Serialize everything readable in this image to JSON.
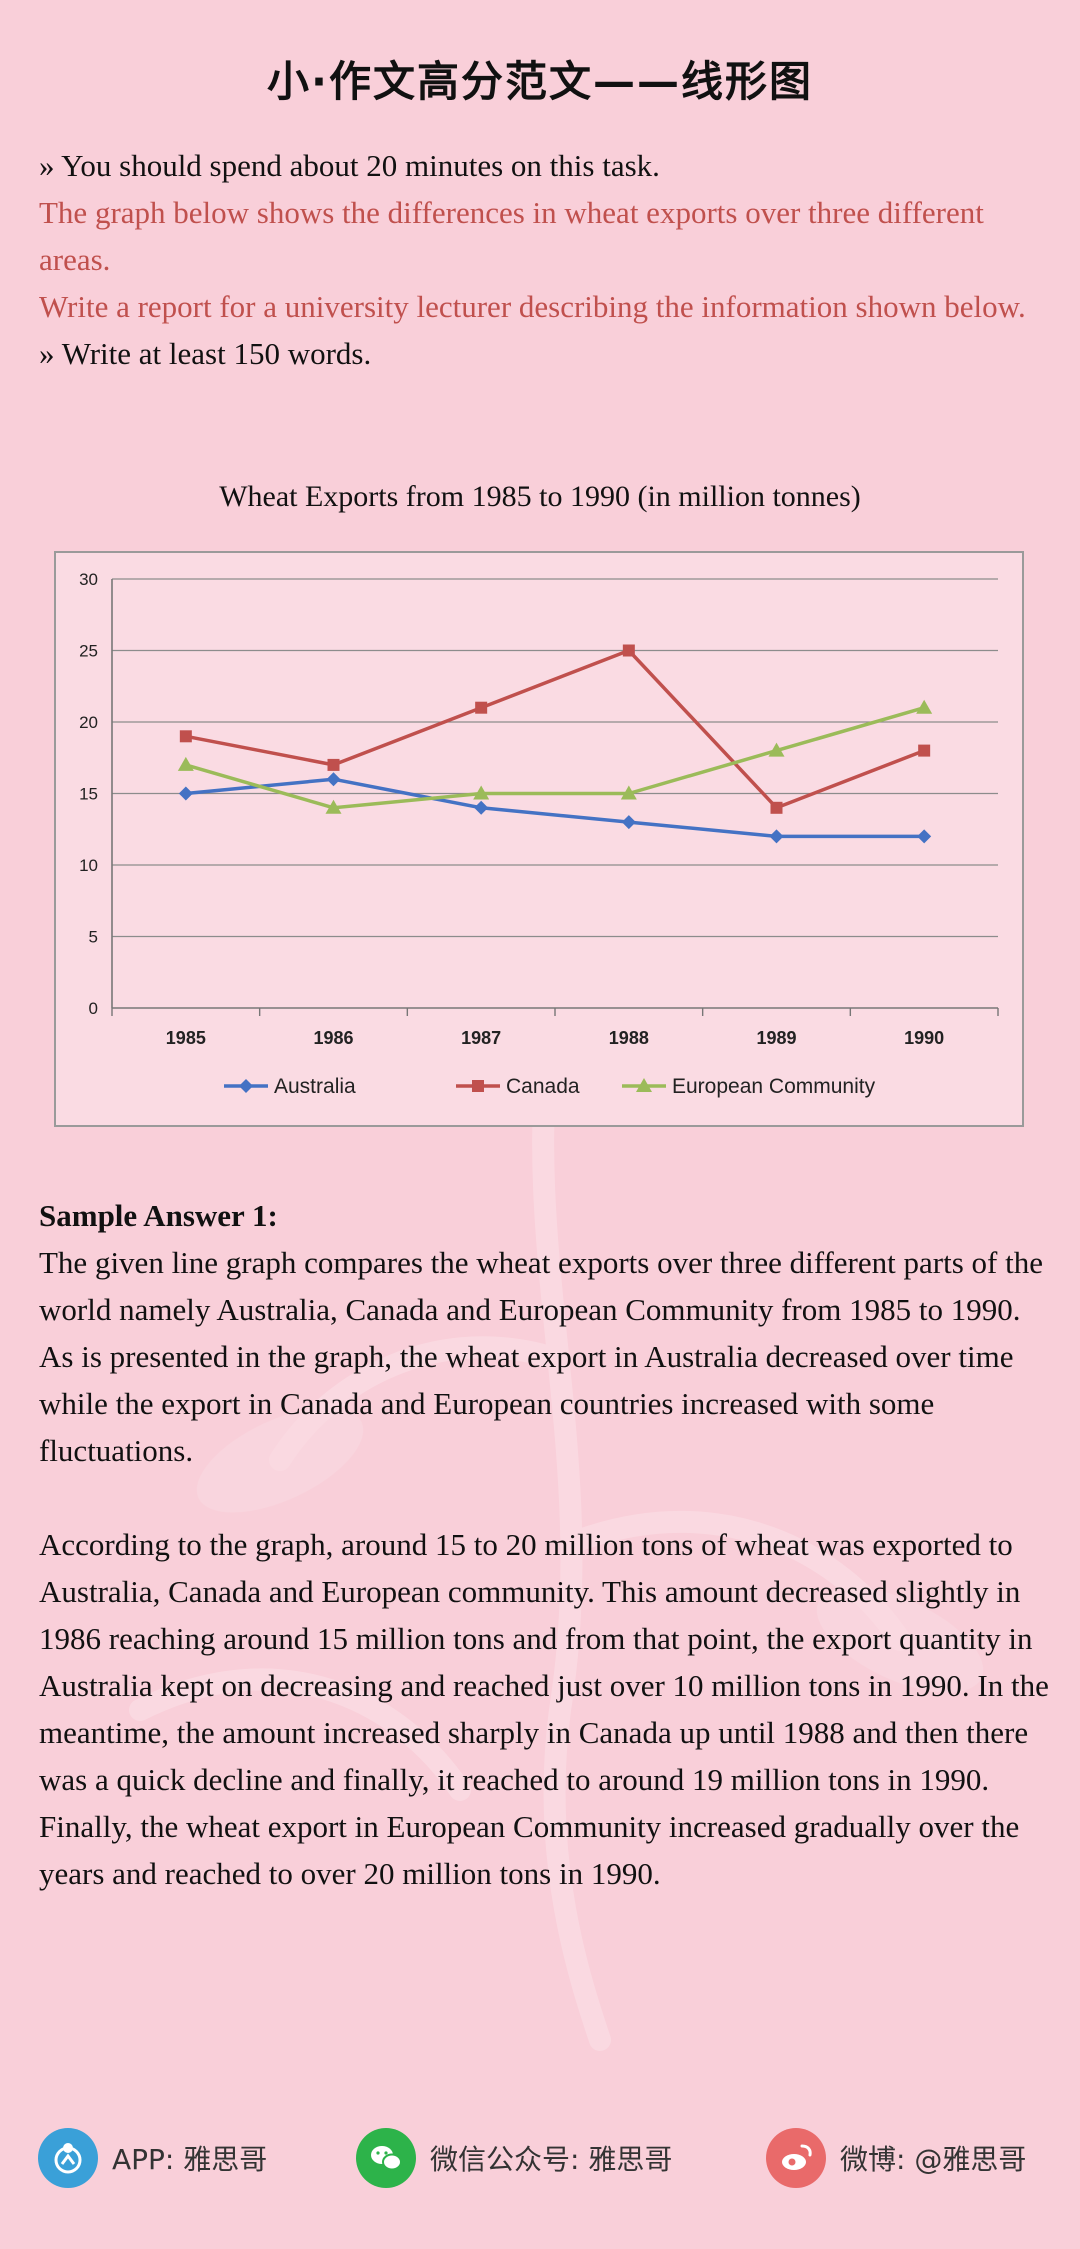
{
  "page_title": "小·作文高分范文——线形图",
  "prompt": {
    "line1": "» You should spend about 20 minutes on this task.",
    "line2": "The graph below shows the differences in wheat exports over three different areas.",
    "line3": "Write a report for a university lecturer describing the information shown below.",
    "line4": "» Write at least 150 words."
  },
  "chart_data": {
    "type": "line",
    "title": "Wheat Exports from 1985 to 1990 (in million tonnes)",
    "categories": [
      "1985",
      "1986",
      "1987",
      "1988",
      "1989",
      "1990"
    ],
    "ylim": [
      0,
      30
    ],
    "yticks": [
      "0",
      "5",
      "10",
      "15",
      "20",
      "25",
      "30"
    ],
    "grid": true,
    "legend_position": "bottom",
    "series": [
      {
        "name": "Australia",
        "color": "#4472c4",
        "marker": "diamond",
        "values": [
          15,
          16,
          14,
          13,
          12,
          12
        ]
      },
      {
        "name": "Canada",
        "color": "#c0504d",
        "marker": "square",
        "values": [
          19,
          17,
          21,
          25,
          14,
          18
        ]
      },
      {
        "name": "European Community",
        "color": "#9bbb59",
        "marker": "triangle",
        "values": [
          17,
          14,
          15,
          15,
          18,
          21
        ]
      }
    ]
  },
  "answer": {
    "heading": "Sample Answer 1:",
    "para1": "The given line graph compares the wheat exports over three different parts of the world namely Australia, Canada and European Community from 1985 to 1990. As is presented in the graph, the wheat export in Australia decreased over time while the export in Canada and European countries increased with some fluctuations.",
    "para2": "According to the graph, around 15 to 20 million tons of wheat was exported to Australia, Canada and European community. This amount decreased slightly in 1986 reaching around 15 million tons and from that point, the export quantity in Australia kept on decreasing and reached just over 10 million tons in 1990. In the meantime, the amount increased sharply in Canada up until 1988 and then there was a quick decline and finally, it reached to around 19 million tons in 1990. Finally, the wheat export in European Community increased gradually over the years and reached to over 20 million tons in 1990."
  },
  "footer": {
    "app": "APP: 雅思哥",
    "wechat": "微信公众号: 雅思哥",
    "weibo": "微博: @雅思哥",
    "app_icon": "app-logo-icon",
    "wechat_icon": "wechat-icon",
    "weibo_icon": "weibo-icon"
  }
}
